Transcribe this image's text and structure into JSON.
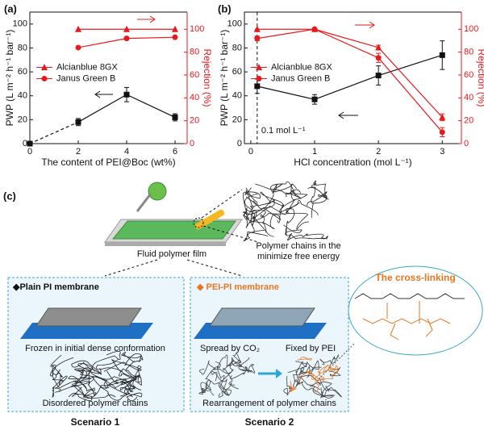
{
  "chart_data": [
    {
      "type": "line",
      "panel_label": "(a)",
      "x_label": "The content of PEI@Boc (wt%)",
      "y_label": "PWP (L m⁻² h⁻¹ bar⁻¹)",
      "y2_label": "Rejection (%)",
      "x": [
        0,
        2,
        4,
        6
      ],
      "xlim": [
        0,
        6.5
      ],
      "xticks": [
        0,
        2,
        4,
        6
      ],
      "ylim": [
        0,
        110
      ],
      "yticks": [
        0,
        20,
        40,
        60,
        80,
        100
      ],
      "y2lim": [
        0,
        115
      ],
      "y2ticks": [
        0,
        20,
        40,
        60,
        80,
        100
      ],
      "y2_color": "#e8191c",
      "legend": "center left",
      "series": [
        {
          "color": "#111111",
          "marker": "square",
          "values": [
            0,
            18,
            41,
            22
          ],
          "errors": [
            0,
            3,
            6,
            3
          ],
          "dashed_segments": [
            0
          ]
        },
        {
          "name": "Alcianblue 8GX",
          "axis": "y2",
          "color": "#e8191c",
          "marker": "triangle",
          "values": [
            null,
            100,
            100,
            100
          ]
        },
        {
          "name": "Janus Green B",
          "axis": "y2",
          "color": "#e8191c",
          "marker": "circle",
          "values": [
            null,
            84,
            92,
            93
          ]
        }
      ]
    },
    {
      "type": "line",
      "panel_label": "(b)",
      "x_label": "HCl concentration (mol L⁻¹)",
      "y_label": "PWP (L m⁻² h⁻¹ bar⁻¹)",
      "y2_label": "Rejection (%)",
      "x": [
        0.1,
        1,
        2,
        3
      ],
      "xlim": [
        -0.1,
        3.3
      ],
      "xticks": [
        0,
        1,
        2,
        3
      ],
      "ylim": [
        0,
        110
      ],
      "yticks": [
        0,
        20,
        40,
        60,
        80,
        100
      ],
      "y2lim": [
        0,
        115
      ],
      "y2ticks": [
        0,
        20,
        40,
        60,
        80,
        100
      ],
      "y2_color": "#e8191c",
      "legend": "center left",
      "annotations": [
        {
          "text": "0.1 mol L⁻¹",
          "x": 0.1
        }
      ],
      "series": [
        {
          "color": "#111111",
          "marker": "square",
          "values": [
            48,
            37,
            57,
            74
          ],
          "errors": [
            6,
            4,
            8,
            12
          ]
        },
        {
          "name": "Alcianblue 8GX",
          "axis": "y2",
          "color": "#e8191c",
          "marker": "triangle",
          "values": [
            100,
            100,
            84,
            23
          ],
          "errors": [
            0,
            0,
            2,
            3
          ]
        },
        {
          "name": "Janus Green B",
          "axis": "y2",
          "color": "#e8191c",
          "marker": "circle",
          "values": [
            92,
            100,
            75,
            10
          ],
          "errors": [
            2,
            0,
            4,
            4
          ]
        }
      ]
    }
  ],
  "diagram": {
    "panel_label": "(c)",
    "film_label": "Fluid polymer film",
    "free_energy_label": [
      "Polymer chains in the",
      "minimize free energy"
    ],
    "scenario1": {
      "heading": "◆Plain PI membrane",
      "caption1": "Frozen in initial dense conformation",
      "caption2": "Disordered polymer chains",
      "name": "Scenario 1"
    },
    "scenario2": {
      "heading": "◆ PEI-PI membrane",
      "spread": "Spread by CO₂",
      "fixed": "Fixed by PEI",
      "caption": "Rearrangement  of polymer chains",
      "name": "Scenario 2"
    },
    "crosslink_label": "The cross-linking"
  }
}
